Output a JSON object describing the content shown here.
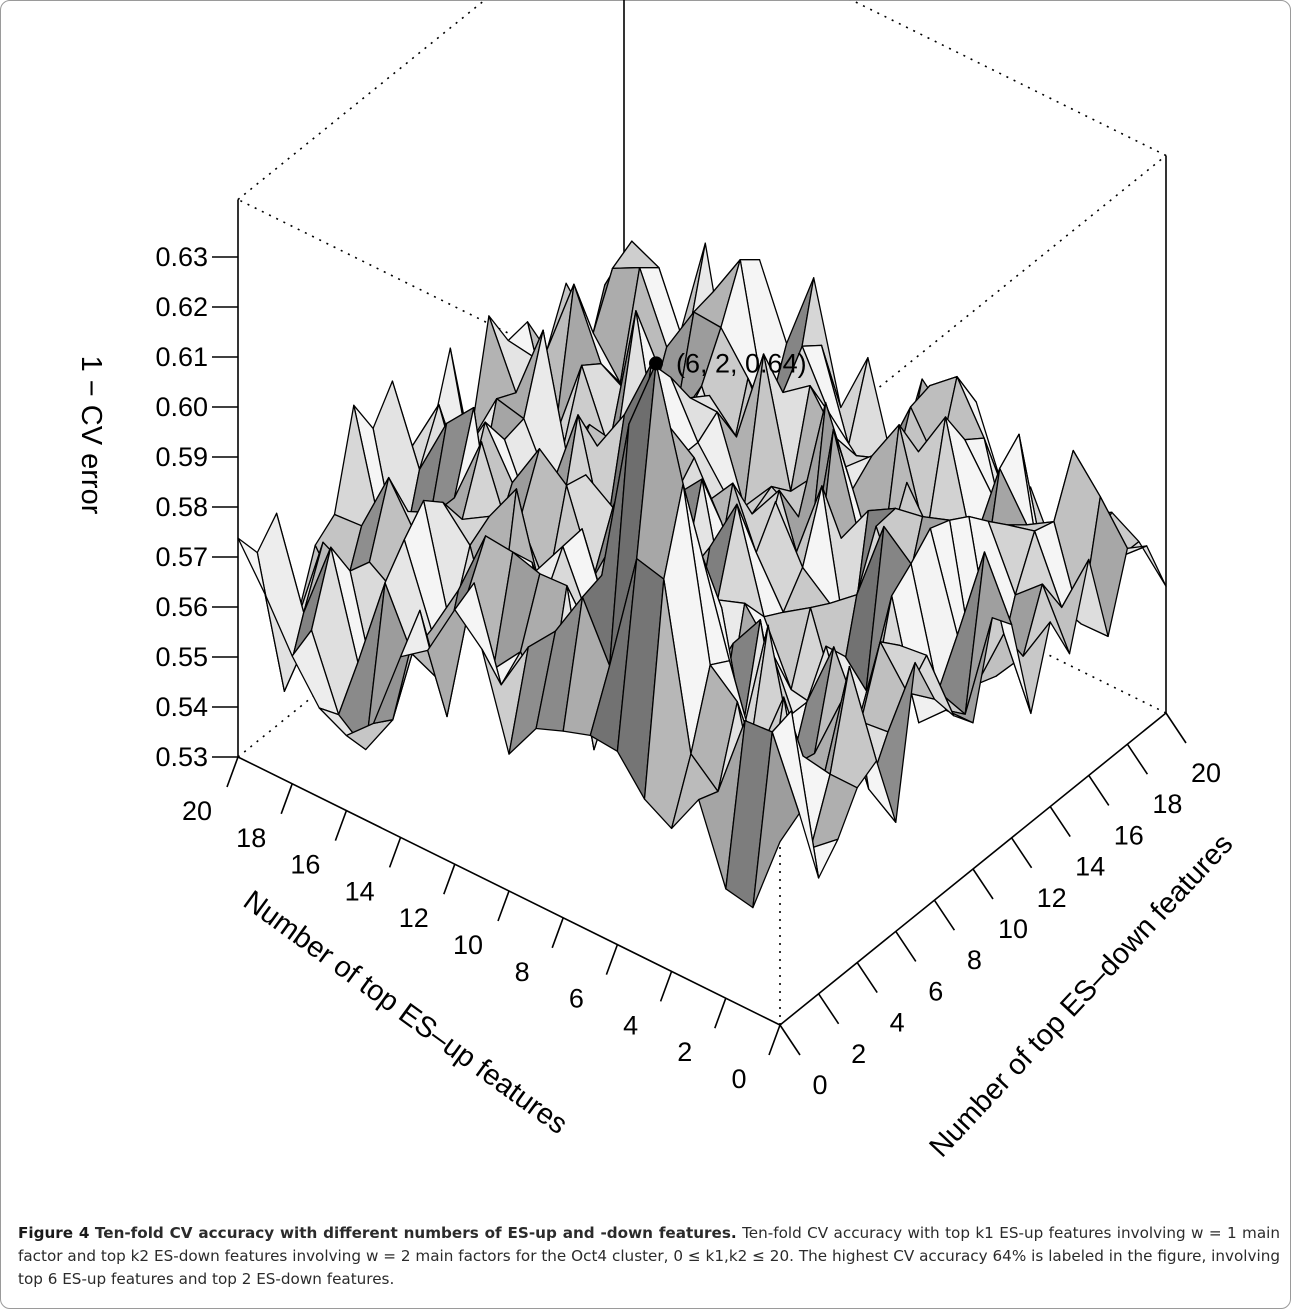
{
  "chart_data": {
    "type": "surface3d",
    "x_label": "Number of top ES–up features",
    "y_label": "Number of top ES–down features",
    "z_label": "1 − CV error",
    "x_ticks": [
      "0",
      "2",
      "4",
      "6",
      "8",
      "10",
      "12",
      "14",
      "16",
      "18",
      "20"
    ],
    "y_ticks": [
      "0",
      "2",
      "4",
      "6",
      "8",
      "10",
      "12",
      "14",
      "16",
      "18",
      "20"
    ],
    "z_ticks": [
      "0.53",
      "0.54",
      "0.55",
      "0.56",
      "0.57",
      "0.58",
      "0.59",
      "0.60",
      "0.61",
      "0.62",
      "0.63"
    ],
    "x_range": [
      0,
      20
    ],
    "y_range": [
      0,
      20
    ],
    "z_range": [
      0.53,
      0.64
    ],
    "peak": {
      "x": 6,
      "y": 2,
      "z": 0.64
    },
    "peak_label": "(6, 2, 0.64)",
    "surface_color": "#c8c8c8",
    "edge_color": "#000000"
  },
  "caption": {
    "label": "Figure 4",
    "title": "Ten-fold CV accuracy with different numbers of ES-up and -down features",
    "body": "Ten-fold CV accuracy with top k1 ES-up features involving w = 1 main factor and top k2 ES-down features involving w = 2 main factors for the Oct4 cluster, 0 ≤ k1,k2 ≤ 20. The highest CV accuracy 64% is labeled in the figure, involving top 6 ES-up features and top 2 ES-down features."
  }
}
